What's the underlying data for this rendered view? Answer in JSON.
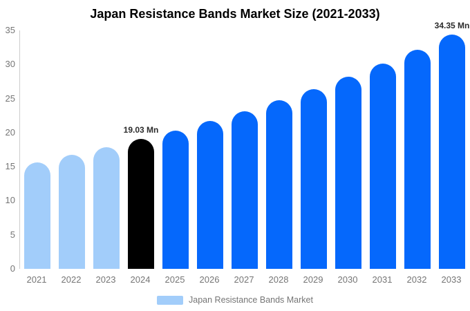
{
  "title": "Japan Resistance Bands Market Size (2021-2033)",
  "colors": {
    "historical_bar": "#A2CDFA",
    "current_year_bar": "#000000",
    "forecast_bar": "#0568FC",
    "axis_line": "#cccccc",
    "tick_text": "#757575",
    "annotation_text": "#2b2b2b",
    "title_text": "#000000"
  },
  "legend": {
    "label": "Japan Resistance Bands Market",
    "swatch_color": "#A2CDFA"
  },
  "chart_data": {
    "type": "bar",
    "title": "Japan Resistance Bands Market Size (2021-2033)",
    "unit": "Mn",
    "categories": [
      "2021",
      "2022",
      "2023",
      "2024",
      "2025",
      "2026",
      "2027",
      "2028",
      "2029",
      "2030",
      "2031",
      "2032",
      "2033"
    ],
    "values": [
      15.63,
      16.69,
      17.82,
      19.03,
      20.32,
      21.7,
      23.17,
      24.74,
      26.42,
      28.21,
      30.12,
      32.17,
      34.35
    ],
    "bar_colors": [
      "#A2CDFA",
      "#A2CDFA",
      "#A2CDFA",
      "#000000",
      "#0568FC",
      "#0568FC",
      "#0568FC",
      "#0568FC",
      "#0568FC",
      "#0568FC",
      "#0568FC",
      "#0568FC",
      "#0568FC"
    ],
    "annotations": [
      {
        "category": "2024",
        "text": "19.03 Mn"
      },
      {
        "category": "2033",
        "text": "34.35 Mn"
      }
    ],
    "xlabel": "",
    "ylabel": "",
    "ylim": [
      0,
      35
    ],
    "yticks": [
      0,
      5,
      10,
      15,
      20,
      25,
      30,
      35
    ],
    "grid": false,
    "legend_entries": [
      "Japan Resistance Bands Market"
    ],
    "legend_position": "bottom"
  }
}
